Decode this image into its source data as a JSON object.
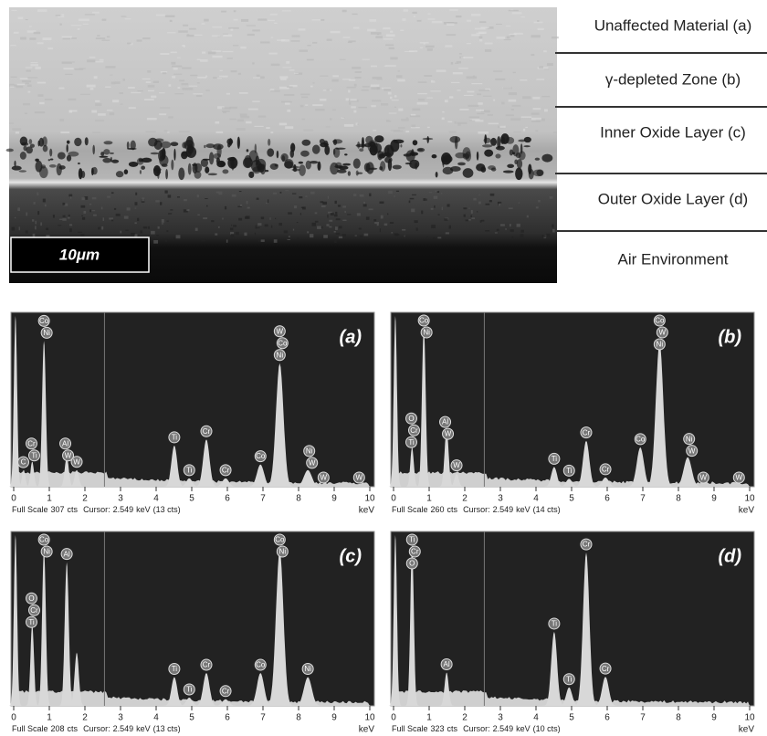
{
  "micrograph": {
    "scale_bar": "10μm",
    "layers": [
      "Unaffected Material (a)",
      "γ-depleted Zone (b)",
      "Inner Oxide Layer (c)",
      "Outer Oxide Layer (d)",
      "Air Environment"
    ]
  },
  "spectra": {
    "type": "spectrum",
    "xlim": [
      0,
      10
    ],
    "xticks": [
      0,
      1,
      2,
      3,
      4,
      5,
      6,
      7,
      8,
      9,
      10
    ],
    "axis_unit": "keV",
    "panels": [
      {
        "label": "(a)",
        "footer": {
          "full_scale_label": "Full Scale",
          "full_scale": 307,
          "unit": "cts",
          "cursor_label": "Cursor:",
          "cursor": 2.549,
          "cursor_unit": "keV",
          "cursor_counts": "(13 cts)"
        },
        "peaks": [
          {
            "energy": 0.05,
            "counts": 307
          },
          {
            "energy": 0.28,
            "counts": 30
          },
          {
            "energy": 0.52,
            "counts": 45
          },
          {
            "energy": 0.85,
            "counts": 262
          },
          {
            "energy": 1.49,
            "counts": 53
          },
          {
            "energy": 1.77,
            "counts": 30
          },
          {
            "energy": 4.51,
            "counts": 74
          },
          {
            "energy": 4.93,
            "counts": 15
          },
          {
            "energy": 5.41,
            "counts": 85
          },
          {
            "energy": 5.95,
            "counts": 15
          },
          {
            "energy": 6.93,
            "counts": 40
          },
          {
            "energy": 7.47,
            "counts": 222
          },
          {
            "energy": 8.26,
            "counts": 30
          }
        ],
        "markers": [
          {
            "energy": 0.27,
            "elements": [
              "C"
            ]
          },
          {
            "energy": 0.5,
            "elements": [
              "Cr",
              "Ti"
            ]
          },
          {
            "energy": 0.85,
            "elements": [
              "Co",
              "Ni"
            ]
          },
          {
            "energy": 1.45,
            "elements": [
              "Al",
              "W"
            ]
          },
          {
            "energy": 1.77,
            "elements": [
              "W"
            ]
          },
          {
            "energy": 4.51,
            "elements": [
              "Ti"
            ]
          },
          {
            "energy": 4.93,
            "elements": [
              "Ti"
            ]
          },
          {
            "energy": 5.41,
            "elements": [
              "Cr"
            ]
          },
          {
            "energy": 5.95,
            "elements": [
              "Cr"
            ]
          },
          {
            "energy": 6.93,
            "elements": [
              "Co"
            ]
          },
          {
            "energy": 7.47,
            "elements": [
              "W",
              "Co",
              "Ni"
            ]
          },
          {
            "energy": 8.3,
            "elements": [
              "Ni",
              "W"
            ]
          },
          {
            "energy": 8.7,
            "elements": [
              "W"
            ]
          },
          {
            "energy": 9.7,
            "elements": [
              "W"
            ]
          }
        ]
      },
      {
        "label": "(b)",
        "footer": {
          "full_scale_label": "Full Scale",
          "full_scale": 260,
          "unit": "cts",
          "cursor_label": "Cursor:",
          "cursor": 2.549,
          "cursor_unit": "keV",
          "cursor_counts": "(14 cts)"
        },
        "peaks": [
          {
            "energy": 0.05,
            "counts": 260
          },
          {
            "energy": 0.52,
            "counts": 60
          },
          {
            "energy": 0.85,
            "counts": 242
          },
          {
            "energy": 1.49,
            "counts": 87
          },
          {
            "energy": 1.77,
            "counts": 20
          },
          {
            "energy": 4.51,
            "counts": 30
          },
          {
            "energy": 4.93,
            "counts": 12
          },
          {
            "energy": 5.41,
            "counts": 70
          },
          {
            "energy": 5.95,
            "counts": 14
          },
          {
            "energy": 6.93,
            "counts": 60
          },
          {
            "energy": 7.47,
            "counts": 220
          },
          {
            "energy": 8.26,
            "counts": 45
          }
        ],
        "markers": [
          {
            "energy": 0.5,
            "elements": [
              "O",
              "Cr",
              "Ti"
            ]
          },
          {
            "energy": 0.85,
            "elements": [
              "Co",
              "Ni"
            ]
          },
          {
            "energy": 1.45,
            "elements": [
              "Al",
              "W"
            ]
          },
          {
            "energy": 1.77,
            "elements": [
              "W"
            ]
          },
          {
            "energy": 4.51,
            "elements": [
              "Ti"
            ]
          },
          {
            "energy": 4.93,
            "elements": [
              "Ti"
            ]
          },
          {
            "energy": 5.41,
            "elements": [
              "Cr"
            ]
          },
          {
            "energy": 5.95,
            "elements": [
              "Cr"
            ]
          },
          {
            "energy": 6.93,
            "elements": [
              "Co"
            ]
          },
          {
            "energy": 7.47,
            "elements": [
              "Co",
              "W",
              "Ni"
            ]
          },
          {
            "energy": 8.3,
            "elements": [
              "Ni",
              "W"
            ]
          },
          {
            "energy": 8.7,
            "elements": [
              "W"
            ]
          },
          {
            "energy": 9.7,
            "elements": [
              "W"
            ]
          }
        ]
      },
      {
        "label": "(c)",
        "footer": {
          "full_scale_label": "Full Scale",
          "full_scale": 208,
          "unit": "cts",
          "cursor_label": "Cursor:",
          "cursor": 2.549,
          "cursor_unit": "keV",
          "cursor_counts": "(13 cts)"
        },
        "peaks": [
          {
            "energy": 0.05,
            "counts": 208
          },
          {
            "energy": 0.52,
            "counts": 100
          },
          {
            "energy": 0.85,
            "counts": 190
          },
          {
            "energy": 1.49,
            "counts": 175
          },
          {
            "energy": 1.77,
            "counts": 65
          },
          {
            "energy": 4.51,
            "counts": 35
          },
          {
            "energy": 4.93,
            "counts": 10
          },
          {
            "energy": 5.41,
            "counts": 40
          },
          {
            "energy": 5.95,
            "counts": 8
          },
          {
            "energy": 6.93,
            "counts": 40
          },
          {
            "energy": 7.47,
            "counts": 190
          },
          {
            "energy": 8.26,
            "counts": 35
          }
        ],
        "markers": [
          {
            "energy": 0.5,
            "elements": [
              "O",
              "Cr",
              "Ti"
            ]
          },
          {
            "energy": 0.85,
            "elements": [
              "Co",
              "Ni"
            ]
          },
          {
            "energy": 1.49,
            "elements": [
              "Al"
            ]
          },
          {
            "energy": 4.51,
            "elements": [
              "Ti"
            ]
          },
          {
            "energy": 4.93,
            "elements": [
              "Ti"
            ]
          },
          {
            "energy": 5.41,
            "elements": [
              "Cr"
            ]
          },
          {
            "energy": 5.95,
            "elements": [
              "Cr"
            ]
          },
          {
            "energy": 6.93,
            "elements": [
              "Co"
            ]
          },
          {
            "energy": 7.47,
            "elements": [
              "Co",
              "Ni"
            ]
          },
          {
            "energy": 8.26,
            "elements": [
              "Ni"
            ]
          }
        ]
      },
      {
        "label": "(d)",
        "footer": {
          "full_scale_label": "Full Scale",
          "full_scale": 323,
          "unit": "cts",
          "cursor_label": "Cursor:",
          "cursor": 2.549,
          "cursor_unit": "keV",
          "cursor_counts": "(10 cts)"
        },
        "peaks": [
          {
            "energy": 0.05,
            "counts": 323
          },
          {
            "energy": 0.52,
            "counts": 305
          },
          {
            "energy": 1.49,
            "counts": 63
          },
          {
            "energy": 4.51,
            "counts": 140
          },
          {
            "energy": 4.93,
            "counts": 35
          },
          {
            "energy": 5.41,
            "counts": 290
          },
          {
            "energy": 5.95,
            "counts": 55
          }
        ],
        "markers": [
          {
            "energy": 0.52,
            "elements": [
              "Ti",
              "Cr",
              "O"
            ]
          },
          {
            "energy": 1.49,
            "elements": [
              "Al"
            ]
          },
          {
            "energy": 4.51,
            "elements": [
              "Ti"
            ]
          },
          {
            "energy": 4.93,
            "elements": [
              "Ti"
            ]
          },
          {
            "energy": 5.41,
            "elements": [
              "Cr"
            ]
          },
          {
            "energy": 5.95,
            "elements": [
              "Cr"
            ]
          }
        ]
      }
    ]
  }
}
